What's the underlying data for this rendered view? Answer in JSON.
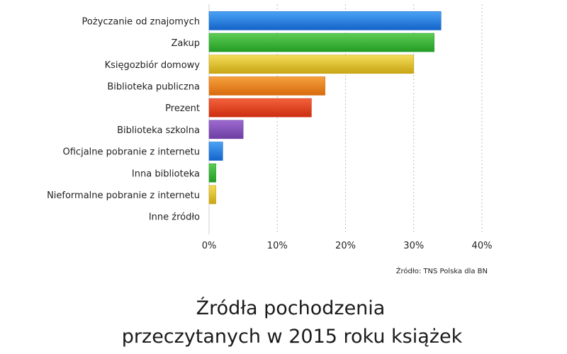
{
  "chart_data": {
    "type": "bar",
    "orientation": "horizontal",
    "categories": [
      "Pożyczanie od znajomych",
      "Zakup",
      "Księgozbiór domowy",
      "Biblioteka publiczna",
      "Prezent",
      "Biblioteka szkolna",
      "Oficjalne pobranie z internetu",
      "Inna biblioteka",
      "Nieformalne pobranie z internetu",
      "Inne źródło"
    ],
    "values": [
      34,
      33,
      30,
      17,
      15,
      5,
      2,
      1,
      1,
      0
    ],
    "unit": "%",
    "xlim": [
      0,
      40
    ],
    "xticks": [
      0,
      10,
      20,
      30,
      40
    ],
    "tick_labels": [
      "0%",
      "10%",
      "20%",
      "30%",
      "40%"
    ],
    "grid": true,
    "title_lines": [
      "Źródła pochodzenia",
      "przeczytanych w 2015 roku książek"
    ],
    "source": "Źródło: TNS Polska dla BN",
    "bar_colors": [
      [
        "#4aa3f5",
        "#1463c9"
      ],
      [
        "#5dcd55",
        "#239b24"
      ],
      [
        "#f4dc5a",
        "#c8a513"
      ],
      [
        "#f6a13d",
        "#d86a0c"
      ],
      [
        "#f4623c",
        "#cc2d10"
      ],
      [
        "#9d6ad0",
        "#6d3ea3"
      ],
      [
        "#4aa3f5",
        "#1463c9"
      ],
      [
        "#5dcd55",
        "#239b24"
      ],
      [
        "#f4dc5a",
        "#c8a513"
      ],
      [
        "#cccccc",
        "#999999"
      ]
    ]
  }
}
